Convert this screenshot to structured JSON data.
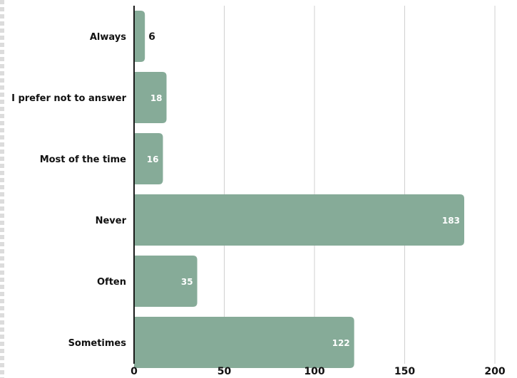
{
  "chart_data": {
    "type": "bar",
    "orientation": "horizontal",
    "categories": [
      "Always",
      "I prefer not to answer",
      "Most of the time",
      "Never",
      "Often",
      "Sometimes"
    ],
    "values": [
      6,
      18,
      16,
      183,
      35,
      122
    ],
    "x_ticks": [
      0,
      50,
      100,
      150,
      200
    ],
    "xlim": [
      0,
      200
    ],
    "grid": "vertical",
    "title": "",
    "xlabel": "",
    "ylabel": "",
    "colors": {
      "bar": "#86ab98",
      "grid": "#d0d0d0",
      "axis": "#1a1a1a",
      "label_inside": "#ffffff",
      "label_outside": "#1a1a1a",
      "text": "#111111"
    }
  }
}
